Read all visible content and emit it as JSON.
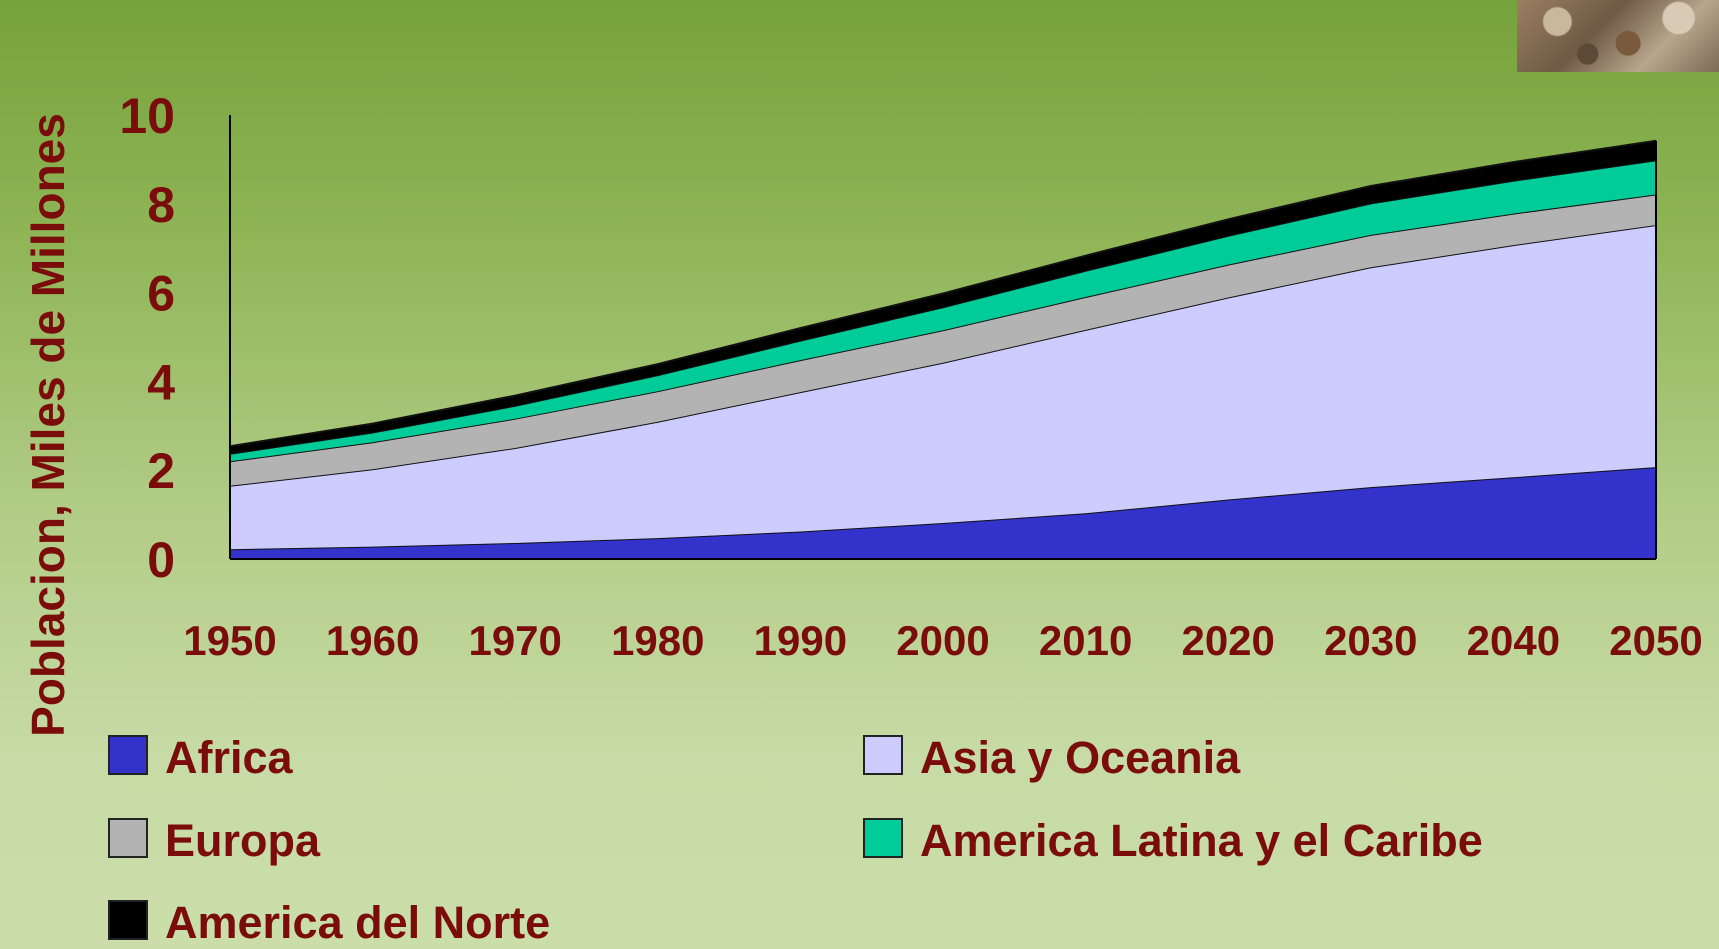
{
  "chart_data": {
    "type": "area",
    "stacked": true,
    "ylabel": "Poblacion, Miles de Millones",
    "xlabel": "",
    "ylim": [
      0,
      10
    ],
    "xlim": [
      1950,
      2050
    ],
    "yticks": [
      "0",
      "2",
      "4",
      "6",
      "8",
      "10"
    ],
    "xticks": [
      "1950",
      "1960",
      "1970",
      "1980",
      "1990",
      "2000",
      "2010",
      "2020",
      "2030",
      "2040",
      "2050"
    ],
    "x": [
      1950,
      1960,
      1970,
      1980,
      1990,
      2000,
      2010,
      2020,
      2030,
      2040,
      2050
    ],
    "series": [
      {
        "name": "Africa",
        "color": "#3333cc",
        "values": [
          0.22,
          0.28,
          0.36,
          0.47,
          0.62,
          0.81,
          1.03,
          1.34,
          1.62,
          1.84,
          2.07
        ]
      },
      {
        "name": "Asia y Oceania",
        "color": "#ccccff",
        "values": [
          1.43,
          1.74,
          2.14,
          2.62,
          3.14,
          3.61,
          4.13,
          4.55,
          4.95,
          5.23,
          5.45
        ]
      },
      {
        "name": "Europa",
        "color": "#b3b3b3",
        "values": [
          0.55,
          0.61,
          0.66,
          0.69,
          0.72,
          0.73,
          0.74,
          0.74,
          0.73,
          0.71,
          0.69
        ]
      },
      {
        "name": "America Latina y el Caribe",
        "color": "#00cc99",
        "values": [
          0.17,
          0.22,
          0.29,
          0.36,
          0.44,
          0.52,
          0.59,
          0.65,
          0.71,
          0.74,
          0.77
        ]
      },
      {
        "name": "America del Norte",
        "color": "#000000",
        "values": [
          0.17,
          0.2,
          0.23,
          0.25,
          0.28,
          0.31,
          0.34,
          0.37,
          0.39,
          0.42,
          0.44
        ]
      }
    ],
    "legend_position": "bottom"
  },
  "legend_items": [
    {
      "label": "Africa",
      "color": "#3333cc"
    },
    {
      "label": "Asia y Oceania",
      "color": "#ccccff"
    },
    {
      "label": "Europa",
      "color": "#b3b3b3"
    },
    {
      "label": "America Latina y el Caribe",
      "color": "#00cc99"
    },
    {
      "label": "America del Norte",
      "color": "#000000"
    }
  ]
}
